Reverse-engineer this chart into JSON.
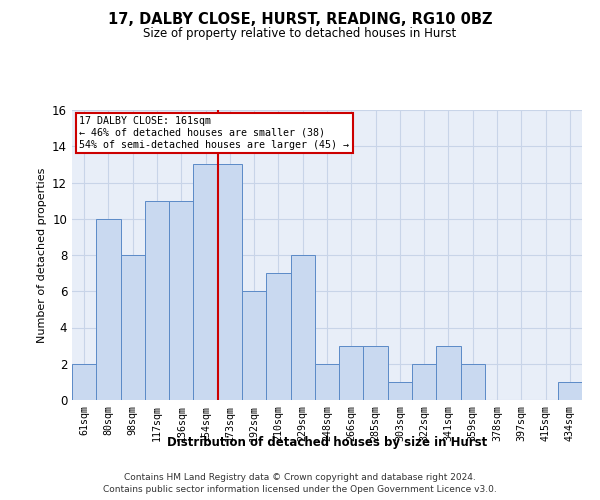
{
  "title": "17, DALBY CLOSE, HURST, READING, RG10 0BZ",
  "subtitle": "Size of property relative to detached houses in Hurst",
  "xlabel": "Distribution of detached houses by size in Hurst",
  "ylabel": "Number of detached properties",
  "categories": [
    "61sqm",
    "80sqm",
    "98sqm",
    "117sqm",
    "136sqm",
    "154sqm",
    "173sqm",
    "192sqm",
    "210sqm",
    "229sqm",
    "248sqm",
    "266sqm",
    "285sqm",
    "303sqm",
    "322sqm",
    "341sqm",
    "359sqm",
    "378sqm",
    "397sqm",
    "415sqm",
    "434sqm"
  ],
  "values": [
    2,
    10,
    8,
    11,
    11,
    13,
    13,
    6,
    7,
    8,
    2,
    3,
    3,
    1,
    2,
    3,
    2,
    0,
    0,
    0,
    1
  ],
  "bar_color": "#c9d9f0",
  "bar_edge_color": "#5b8ac7",
  "bar_edge_width": 0.7,
  "grid_color": "#c8d4e8",
  "bg_color": "#e8eef8",
  "annotation_line1": "17 DALBY CLOSE: 161sqm",
  "annotation_line2": "← 46% of detached houses are smaller (38)",
  "annotation_line3": "54% of semi-detached houses are larger (45) →",
  "annotation_box_color": "#ffffff",
  "annotation_box_edge": "#cc0000",
  "property_line_x": 5.5,
  "property_line_color": "#cc0000",
  "ylim": [
    0,
    16
  ],
  "yticks": [
    0,
    2,
    4,
    6,
    8,
    10,
    12,
    14,
    16
  ],
  "footer1": "Contains HM Land Registry data © Crown copyright and database right 2024.",
  "footer2": "Contains public sector information licensed under the Open Government Licence v3.0."
}
